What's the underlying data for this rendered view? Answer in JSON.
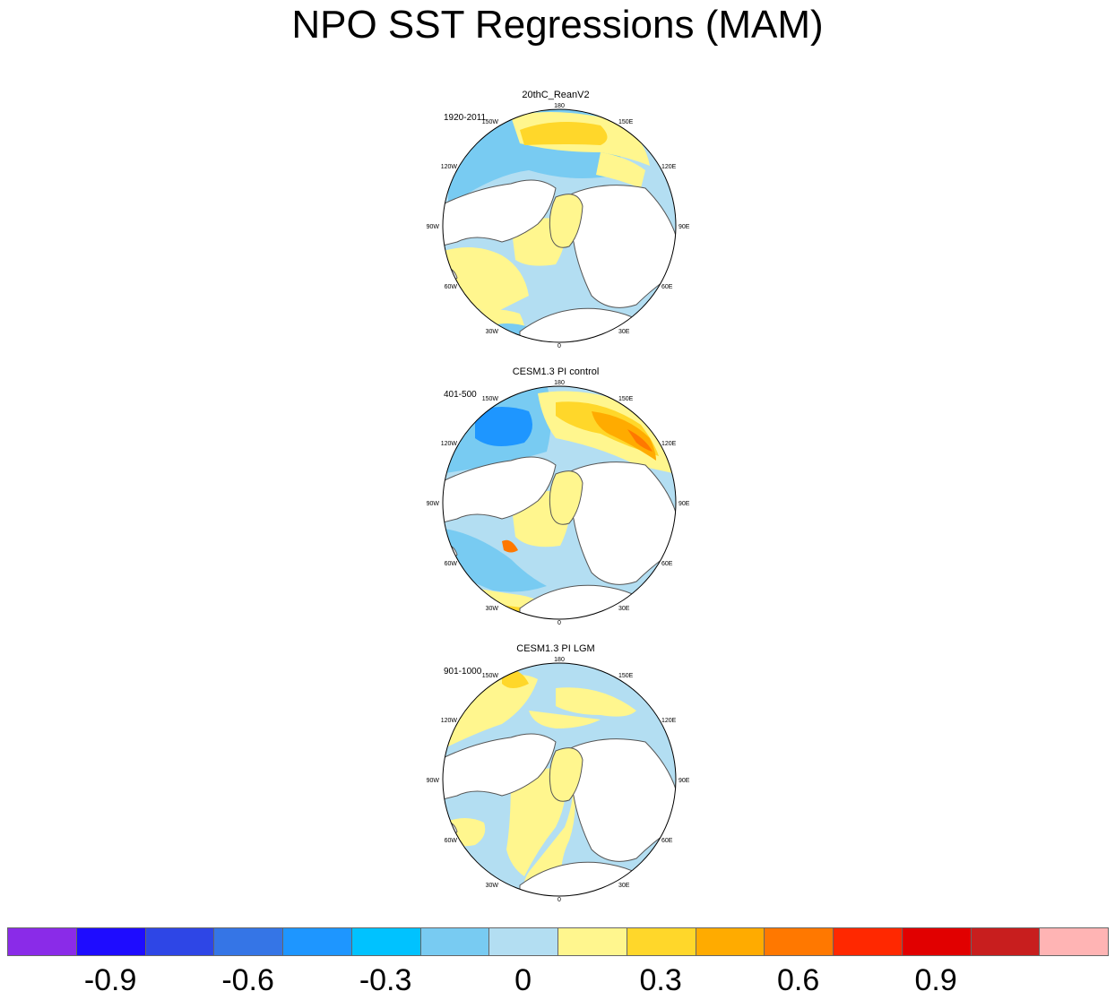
{
  "title": "NPO SST Regressions (MAM)",
  "panels": [
    {
      "title": "20thC_ReanV2",
      "period": "1920-2011",
      "pattern": "rean"
    },
    {
      "title": "CESM1.3 PI control",
      "period": "401-500",
      "pattern": "control"
    },
    {
      "title": "CESM1.3 PI LGM",
      "period": "901-1000",
      "pattern": "lgm"
    }
  ],
  "longitude_labels": [
    "180",
    "150E",
    "120E",
    "90E",
    "60E",
    "30E",
    "0",
    "30W",
    "60W",
    "90W",
    "120W",
    "150W"
  ],
  "colorbar": {
    "colors": [
      "#8a2be8",
      "#1e0cff",
      "#2e46e6",
      "#3575e6",
      "#1e96ff",
      "#00c2ff",
      "#78cbf2",
      "#b3def2",
      "#fff68e",
      "#ffd72a",
      "#ffab00",
      "#ff7800",
      "#ff2800",
      "#e10000",
      "#c81e1e",
      "#ffb4b4"
    ],
    "labels": [
      "-0.9",
      "-0.6",
      "-0.3",
      "0",
      "0.3",
      "0.6",
      "0.9"
    ]
  }
}
